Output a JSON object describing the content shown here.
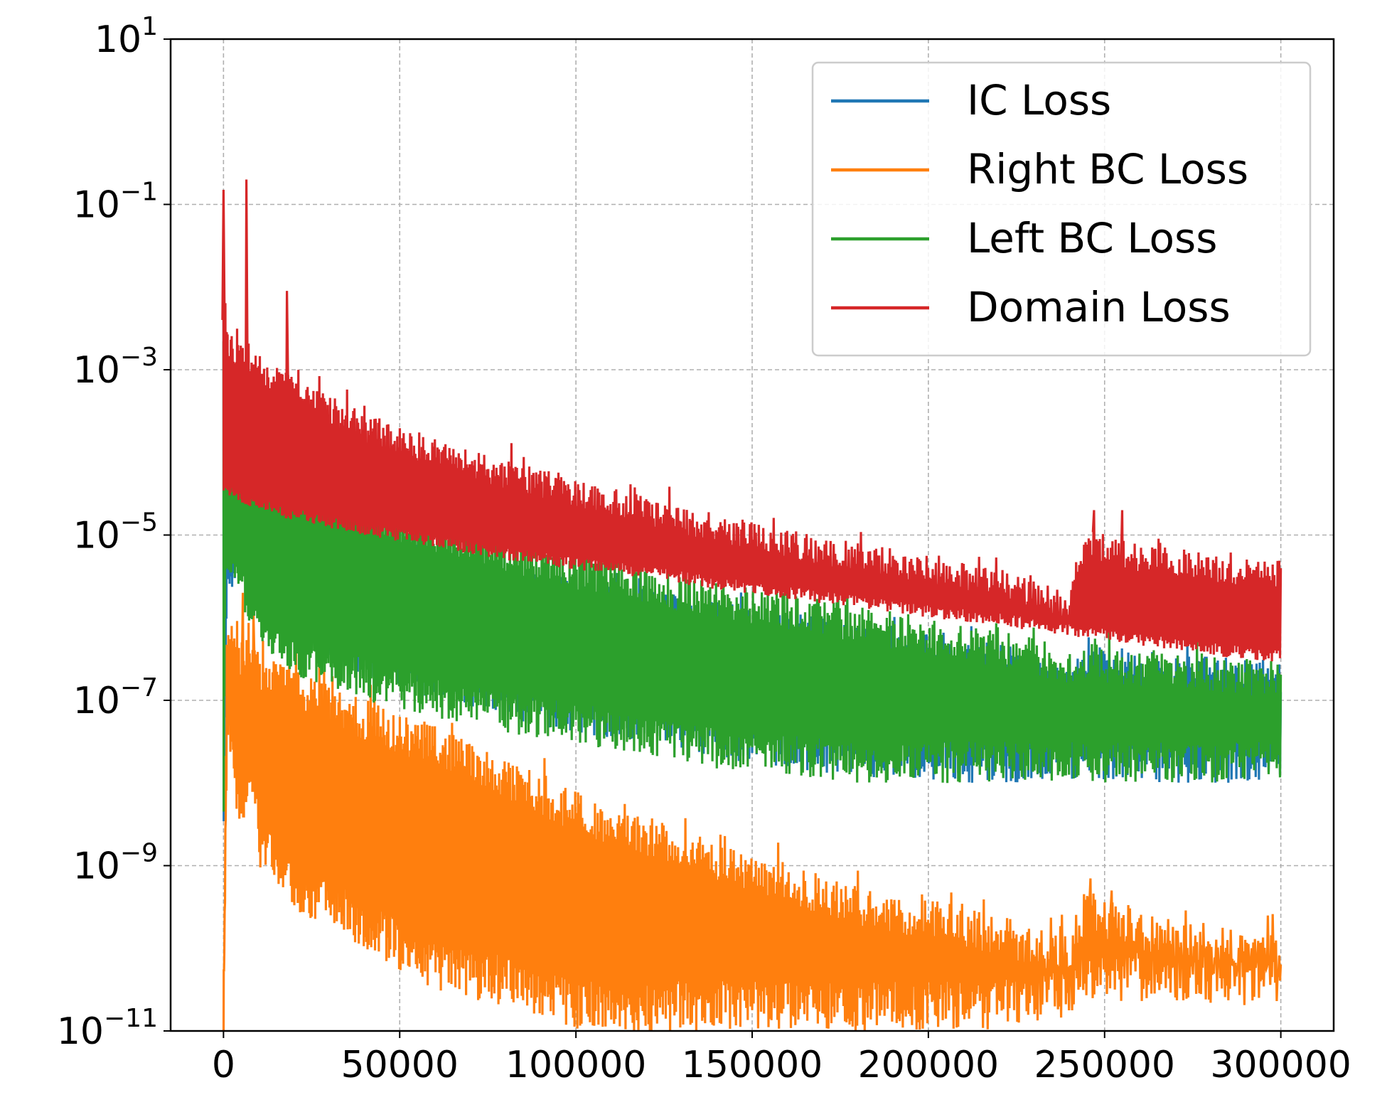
{
  "chart_data": {
    "type": "line",
    "title": "",
    "xlabel": "",
    "ylabel": "",
    "yscale": "log",
    "xlim": [
      -15000,
      315000
    ],
    "ylim": [
      1e-11,
      10
    ],
    "x_ticks": [
      {
        "value": 0,
        "label": "0"
      },
      {
        "value": 50000,
        "label": "50000"
      },
      {
        "value": 100000,
        "label": "100000"
      },
      {
        "value": 150000,
        "label": "150000"
      },
      {
        "value": 200000,
        "label": "200000"
      },
      {
        "value": 250000,
        "label": "250000"
      },
      {
        "value": 300000,
        "label": "300000"
      }
    ],
    "y_ticks": [
      {
        "exp": 1,
        "base": "10",
        "sup": "1"
      },
      {
        "exp": -1,
        "base": "10",
        "sup": "−1"
      },
      {
        "exp": -3,
        "base": "10",
        "sup": "−3"
      },
      {
        "exp": -5,
        "base": "10",
        "sup": "−5"
      },
      {
        "exp": -7,
        "base": "10",
        "sup": "−7"
      },
      {
        "exp": -9,
        "base": "10",
        "sup": "−9"
      },
      {
        "exp": -11,
        "base": "10",
        "sup": "−11"
      }
    ],
    "grid": true,
    "legend_position": "top-right",
    "series": [
      {
        "name": "IC Loss",
        "color": "#1f77b4",
        "x": [
          0,
          1000,
          5000,
          10000,
          20000,
          40000,
          60000,
          80000,
          100000,
          120000,
          140000,
          160000,
          180000,
          200000,
          220000,
          240000,
          245000,
          260000,
          280000,
          300000
        ],
        "upper": [
          0.005,
          0.001,
          0.0003,
          0.0001,
          3e-05,
          1e-05,
          6e-06,
          4e-06,
          3e-06,
          2.2e-06,
          1.6e-06,
          1.2e-06,
          9e-07,
          7e-07,
          5e-07,
          2.5e-07,
          5e-07,
          4e-07,
          3.5e-07,
          3e-07
        ],
        "lower": [
          1e-09,
          2e-06,
          3e-06,
          1e-06,
          5e-07,
          2e-07,
          1e-07,
          6e-08,
          4e-08,
          3e-08,
          2e-08,
          1.5e-08,
          1.2e-08,
          1e-08,
          1e-08,
          1e-08,
          1e-08,
          1e-08,
          1e-08,
          1e-08
        ],
        "upper_noise": 0.4,
        "lower_noise": 0.5,
        "spikes": []
      },
      {
        "name": "Right BC Loss",
        "color": "#ff7f0e",
        "x": [
          0,
          1000,
          5000,
          8000,
          10000,
          20000,
          40000,
          60000,
          80000,
          100000,
          120000,
          140000,
          160000,
          180000,
          200000,
          220000,
          240000,
          245000,
          260000,
          280000,
          300000
        ],
        "upper": [
          1e-11,
          1e-06,
          5e-07,
          8e-07,
          4e-07,
          2.5e-07,
          1e-07,
          5e-08,
          2e-08,
          8e-09,
          4e-09,
          2e-09,
          1e-09,
          6e-10,
          4e-10,
          2.5e-10,
          1.5e-10,
          5e-10,
          3e-10,
          2e-10,
          1.5e-10
        ],
        "lower": [
          1e-11,
          3e-08,
          2e-09,
          1e-08,
          1e-09,
          3e-10,
          1e-10,
          3e-11,
          2e-11,
          1e-11,
          1e-11,
          1e-11,
          1e-11,
          1e-11,
          1e-11,
          1e-11,
          1.5e-11,
          2.5e-11,
          2.2e-11,
          2e-11,
          2e-11
        ],
        "upper_noise": 0.5,
        "lower_noise": 0.6,
        "spikes": [
          {
            "x": 5500,
            "y": 2e-06
          },
          {
            "x": 8500,
            "y": 1.2e-06
          },
          {
            "x": 246000,
            "y": 7e-10
          },
          {
            "x": 252000,
            "y": 5e-10
          }
        ]
      },
      {
        "name": "Left BC Loss",
        "color": "#2ca02c",
        "x": [
          0,
          500,
          4000,
          6500,
          10000,
          20000,
          40000,
          60000,
          80000,
          100000,
          120000,
          140000,
          160000,
          180000,
          200000,
          220000,
          240000,
          245000,
          260000,
          280000,
          300000
        ],
        "upper": [
          0.006,
          0.003,
          0.0002,
          0.0012,
          0.00035,
          9e-05,
          3e-05,
          1.6e-05,
          1e-05,
          6e-06,
          4e-06,
          2.8e-06,
          2e-06,
          1.4e-06,
          1e-06,
          7e-07,
          4.5e-07,
          5e-07,
          4e-07,
          3.5e-07,
          3e-07
        ],
        "lower": [
          1e-09,
          3e-06,
          2e-06,
          1e-06,
          5e-07,
          2e-07,
          1e-07,
          6e-08,
          4e-08,
          3e-08,
          2e-08,
          1.5e-08,
          1.2e-08,
          1e-08,
          1e-08,
          1e-08,
          1e-08,
          1e-08,
          1e-08,
          1e-08,
          1e-08
        ],
        "upper_noise": 0.45,
        "lower_noise": 0.5,
        "spikes": []
      },
      {
        "name": "Domain Loss",
        "color": "#d62728",
        "x": [
          0,
          1000,
          5000,
          10000,
          20000,
          40000,
          60000,
          80000,
          100000,
          120000,
          140000,
          160000,
          180000,
          200000,
          220000,
          240000,
          245000,
          260000,
          280000,
          300000
        ],
        "upper": [
          0.008,
          0.003,
          0.002,
          0.0015,
          0.0008,
          0.0003,
          0.00015,
          8e-05,
          5e-05,
          3e-05,
          1.8e-05,
          1.2e-05,
          8e-06,
          6e-06,
          4e-06,
          2e-06,
          1.2e-05,
          8e-06,
          6e-06,
          5e-06
        ],
        "lower": [
          3e-05,
          3e-05,
          2.5e-05,
          2e-05,
          1.5e-05,
          1e-05,
          7e-06,
          5e-06,
          3.8e-06,
          3e-06,
          2.2e-06,
          1.7e-06,
          1.3e-06,
          1e-06,
          8e-07,
          6e-07,
          5.5e-07,
          4.5e-07,
          3.5e-07,
          2.8e-07
        ],
        "upper_noise": 0.35,
        "lower_noise": 0.15,
        "spikes": [
          {
            "x": 0,
            "y": 0.15
          },
          {
            "x": 6500,
            "y": 0.2
          },
          {
            "x": 18000,
            "y": 0.009
          },
          {
            "x": 247000,
            "y": 2e-05
          },
          {
            "x": 255000,
            "y": 2e-05
          }
        ]
      }
    ]
  }
}
